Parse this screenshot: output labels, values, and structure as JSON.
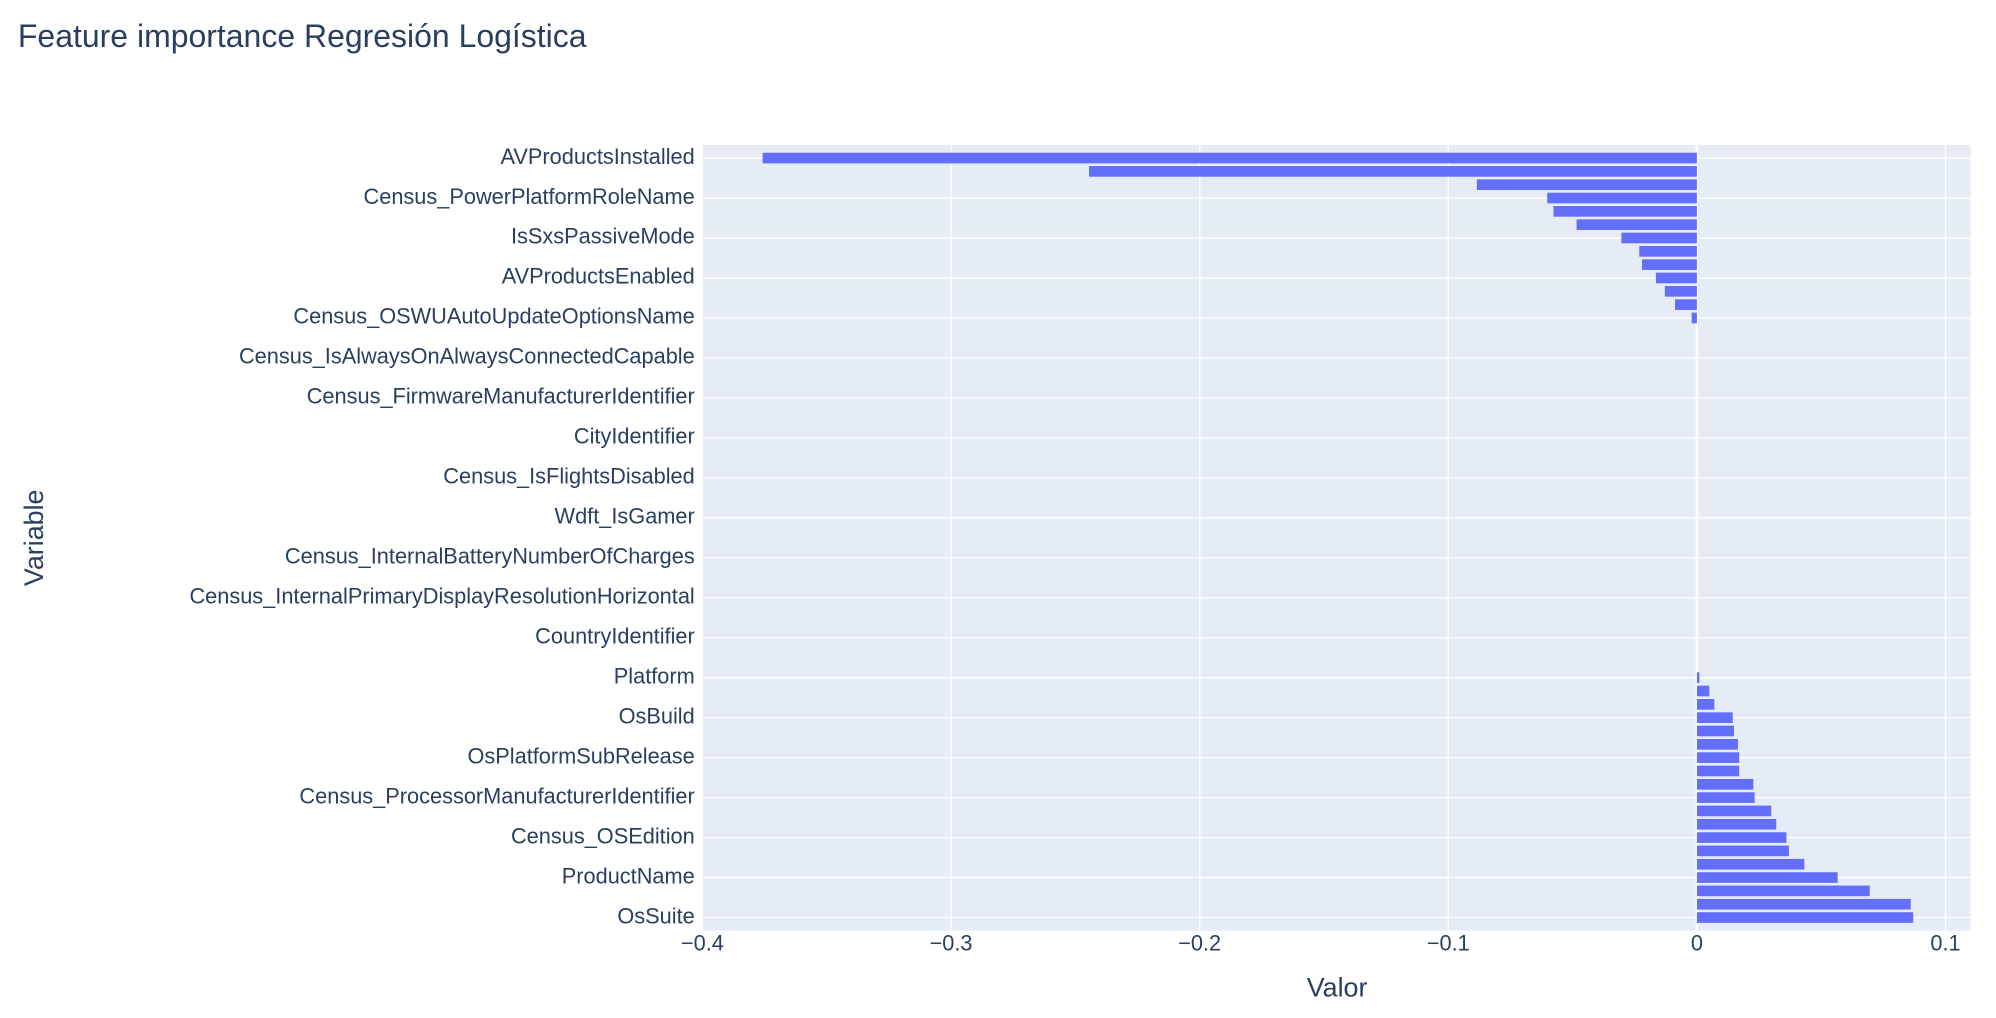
{
  "chart_data": {
    "type": "barh",
    "title": "Feature importance Regresión Logística",
    "x_label": "Valor",
    "y_label": "Variable",
    "color": "#636efa",
    "grid": true,
    "xlim": [
      -0.4,
      0.11
    ],
    "xticks": [
      {
        "value": -0.4,
        "label": "−0.4"
      },
      {
        "value": -0.3,
        "label": "−0.3"
      },
      {
        "value": -0.2,
        "label": "−0.2"
      },
      {
        "value": -0.1,
        "label": "−0.1"
      },
      0,
      0.1
    ],
    "categories": [
      "AVProductsInstalled",
      null,
      null,
      "Census_PowerPlatformRoleName",
      null,
      null,
      "IsSxsPassiveMode",
      null,
      null,
      "AVProductsEnabled",
      null,
      null,
      "Census_OSWUAutoUpdateOptionsName",
      null,
      null,
      "Census_IsAlwaysOnAlwaysConnectedCapable",
      null,
      null,
      "Census_FirmwareManufacturerIdentifier",
      null,
      null,
      "CityIdentifier",
      null,
      null,
      "Census_IsFlightsDisabled",
      null,
      null,
      "Wdft_IsGamer",
      null,
      null,
      "Census_InternalBatteryNumberOfCharges",
      null,
      null,
      "Census_InternalPrimaryDisplayResolutionHorizontal",
      null,
      null,
      "CountryIdentifier",
      null,
      null,
      "Platform",
      null,
      null,
      "OsBuild",
      null,
      null,
      "OsPlatformSubRelease",
      null,
      null,
      "Census_ProcessorManufacturerIdentifier",
      null,
      null,
      "Census_OSEdition",
      null,
      null,
      "ProductName",
      null,
      null,
      "OsSuite"
    ],
    "values": [
      -0.3758,
      -0.2445,
      -0.0885,
      -0.0602,
      -0.0577,
      -0.0484,
      -0.0304,
      -0.0232,
      -0.0221,
      -0.0165,
      -0.0129,
      -0.0088,
      -0.0021,
      0,
      0,
      0,
      0,
      0,
      0,
      0,
      0,
      0,
      0,
      0,
      0,
      0,
      0,
      0,
      0,
      0,
      0,
      0,
      0,
      0,
      0,
      0,
      0,
      0,
      0,
      0.001,
      0.005,
      0.007,
      0.0144,
      0.0149,
      0.0165,
      0.017,
      0.017,
      0.0227,
      0.0232,
      0.0299,
      0.0319,
      0.036,
      0.037,
      0.0432,
      0.0566,
      0.0695,
      0.086,
      0.087
    ]
  }
}
